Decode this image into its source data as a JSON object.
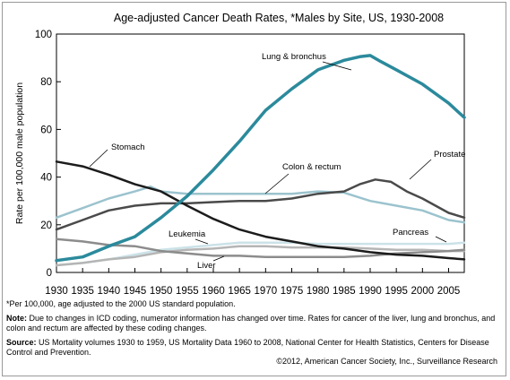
{
  "chart_data": {
    "type": "line",
    "title": "Age-adjusted Cancer Death Rates, *Males by Site, US, 1930-2008",
    "xlabel": "",
    "ylabel": "Rate per 100,000 male population",
    "xlim": [
      1930,
      2008
    ],
    "ylim": [
      0,
      100
    ],
    "x_ticks": [
      1930,
      1935,
      1940,
      1945,
      1950,
      1955,
      1960,
      1965,
      1970,
      1975,
      1980,
      1985,
      1990,
      1995,
      2000,
      2005
    ],
    "y_ticks": [
      0,
      20,
      40,
      60,
      80,
      100
    ],
    "grid": false,
    "series": [
      {
        "name": "Lung & bronchus",
        "color": "#2b8a9c",
        "width": 3.5,
        "points": [
          [
            1930,
            5
          ],
          [
            1935,
            6.5
          ],
          [
            1940,
            11
          ],
          [
            1945,
            15
          ],
          [
            1950,
            23
          ],
          [
            1955,
            32
          ],
          [
            1960,
            43
          ],
          [
            1965,
            55
          ],
          [
            1970,
            68
          ],
          [
            1975,
            77
          ],
          [
            1980,
            85
          ],
          [
            1985,
            89
          ],
          [
            1988,
            90.5
          ],
          [
            1990,
            91
          ],
          [
            1992,
            88.5
          ],
          [
            1995,
            85
          ],
          [
            2000,
            79
          ],
          [
            2005,
            71
          ],
          [
            2008,
            65
          ]
        ]
      },
      {
        "name": "Stomach",
        "color": "#1c1c1c",
        "width": 2.5,
        "points": [
          [
            1930,
            46.5
          ],
          [
            1935,
            44.5
          ],
          [
            1940,
            41
          ],
          [
            1945,
            37
          ],
          [
            1950,
            34
          ],
          [
            1955,
            28
          ],
          [
            1960,
            22.5
          ],
          [
            1965,
            18
          ],
          [
            1970,
            15
          ],
          [
            1975,
            13
          ],
          [
            1980,
            11
          ],
          [
            1985,
            10
          ],
          [
            1990,
            8.5
          ],
          [
            1995,
            7.5
          ],
          [
            2000,
            7
          ],
          [
            2005,
            6
          ],
          [
            2008,
            5.5
          ]
        ]
      },
      {
        "name": "Colon & rectum",
        "color": "#9bc3ce",
        "width": 2.5,
        "points": [
          [
            1930,
            23
          ],
          [
            1935,
            27
          ],
          [
            1940,
            31
          ],
          [
            1945,
            34
          ],
          [
            1948,
            36
          ],
          [
            1950,
            34
          ],
          [
            1955,
            33
          ],
          [
            1960,
            33
          ],
          [
            1965,
            33
          ],
          [
            1970,
            33
          ],
          [
            1975,
            33
          ],
          [
            1980,
            34
          ],
          [
            1985,
            33.5
          ],
          [
            1990,
            30
          ],
          [
            1995,
            28
          ],
          [
            2000,
            26
          ],
          [
            2005,
            22
          ],
          [
            2008,
            21
          ]
        ]
      },
      {
        "name": "Prostate",
        "color": "#4a4a4a",
        "width": 2.5,
        "points": [
          [
            1930,
            18
          ],
          [
            1935,
            22
          ],
          [
            1940,
            26
          ],
          [
            1945,
            28
          ],
          [
            1950,
            29
          ],
          [
            1955,
            29
          ],
          [
            1960,
            29.5
          ],
          [
            1965,
            30
          ],
          [
            1970,
            30
          ],
          [
            1975,
            31
          ],
          [
            1980,
            33
          ],
          [
            1985,
            34
          ],
          [
            1988,
            37
          ],
          [
            1991,
            39
          ],
          [
            1994,
            38
          ],
          [
            1997,
            34
          ],
          [
            2000,
            31
          ],
          [
            2005,
            25
          ],
          [
            2008,
            23
          ]
        ]
      },
      {
        "name": "Pancreas",
        "color": "#cbe2e8",
        "width": 2.5,
        "points": [
          [
            1930,
            3
          ],
          [
            1935,
            4
          ],
          [
            1940,
            5.5
          ],
          [
            1945,
            7.5
          ],
          [
            1950,
            9.5
          ],
          [
            1955,
            10.5
          ],
          [
            1960,
            11.5
          ],
          [
            1965,
            12.5
          ],
          [
            1970,
            12.5
          ],
          [
            1975,
            12.5
          ],
          [
            1980,
            12
          ],
          [
            1985,
            12
          ],
          [
            1990,
            12
          ],
          [
            1995,
            12
          ],
          [
            2000,
            12
          ],
          [
            2005,
            12
          ],
          [
            2008,
            12.5
          ]
        ]
      },
      {
        "name": "Leukemia",
        "color": "#b5b5b5",
        "width": 2.5,
        "points": [
          [
            1930,
            3
          ],
          [
            1935,
            4
          ],
          [
            1940,
            5.5
          ],
          [
            1945,
            6.5
          ],
          [
            1950,
            8.5
          ],
          [
            1955,
            9.5
          ],
          [
            1960,
            10
          ],
          [
            1965,
            11
          ],
          [
            1970,
            11
          ],
          [
            1975,
            10.5
          ],
          [
            1980,
            10.5
          ],
          [
            1985,
            10.5
          ],
          [
            1990,
            10
          ],
          [
            1995,
            9.5
          ],
          [
            2000,
            9.5
          ],
          [
            2005,
            9
          ],
          [
            2008,
            9
          ]
        ]
      },
      {
        "name": "Liver",
        "color": "#8c8c8c",
        "width": 2.5,
        "points": [
          [
            1930,
            14
          ],
          [
            1935,
            13
          ],
          [
            1940,
            11.5
          ],
          [
            1945,
            11
          ],
          [
            1950,
            9
          ],
          [
            1955,
            8
          ],
          [
            1960,
            7
          ],
          [
            1965,
            7
          ],
          [
            1970,
            6.5
          ],
          [
            1975,
            6.5
          ],
          [
            1980,
            6.5
          ],
          [
            1985,
            6.5
          ],
          [
            1990,
            7
          ],
          [
            1995,
            8
          ],
          [
            2000,
            8.5
          ],
          [
            2005,
            9
          ],
          [
            2008,
            9.5
          ]
        ]
      }
    ]
  },
  "notes": {
    "footnote": "*Per 100,000, age adjusted to the 2000 US standard population.",
    "note_label": "Note:",
    "note_text": "Due to changes in ICD coding, numerator information has changed over time. Rates for cancer of the liver, lung and bronchus, and colon and rectum are affected by these coding changes.",
    "source_label": "Source:",
    "source_text": "US Mortality volumes 1930 to 1959, US Mortality Data 1960 to 2008, National Center for Health Statistics, Centers for Disease Control and Prevention.",
    "copyright": "©2012, American Cancer Society, Inc., Surveillance Research"
  }
}
